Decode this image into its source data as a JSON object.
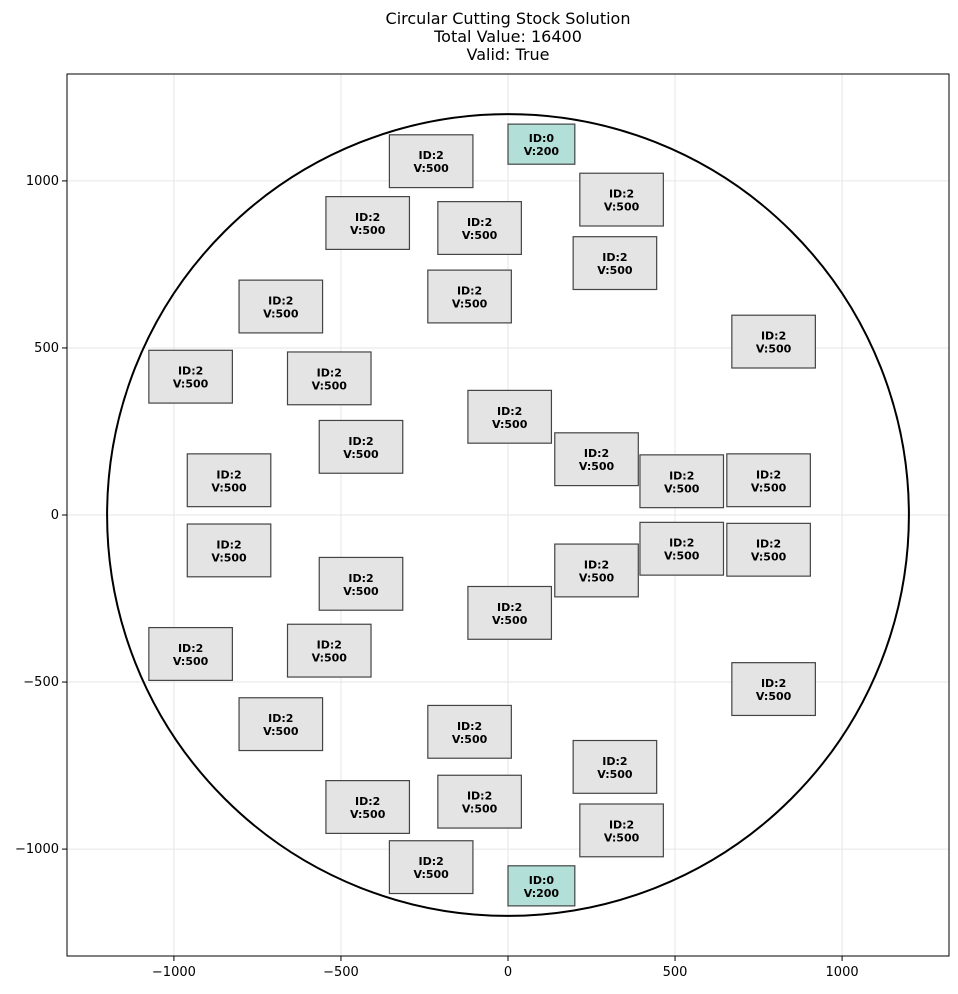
{
  "chart_data": {
    "type": "scatter",
    "title_lines": [
      "Circular Cutting Stock Solution",
      "Total Value: 16400",
      "Valid: True"
    ],
    "xlabel": "",
    "ylabel": "",
    "xlim": [
      -1320,
      1320
    ],
    "ylim": [
      -1320,
      1320
    ],
    "x_ticks": [
      -1000,
      -500,
      0,
      500,
      1000
    ],
    "y_ticks": [
      -1000,
      -500,
      0,
      500,
      1000
    ],
    "x_tick_labels": [
      "−1000",
      "−500",
      "0",
      "500",
      "1000"
    ],
    "y_tick_labels": [
      "−1000",
      "−500",
      "0",
      "500",
      "1000"
    ],
    "grid": true,
    "circle": {
      "cx": 0,
      "cy": 0,
      "r": 1200
    },
    "colors": {
      "circle": "#000000",
      "piece_0": "#b2dfd8",
      "piece_2": "#e4e4e4",
      "piece_edge": "#444444",
      "grid": "#e6e6e6"
    },
    "pieces": [
      {
        "id": 0,
        "value": 200,
        "label_id": "ID:0",
        "label_value": "V:200",
        "x0": 0,
        "y0": 1050,
        "w": 200,
        "h": 120
      },
      {
        "id": 0,
        "value": 200,
        "label_id": "ID:0",
        "label_value": "V:200",
        "x0": 0,
        "y0": -1170,
        "w": 200,
        "h": 120
      },
      {
        "id": 2,
        "value": 500,
        "label_id": "ID:2",
        "label_value": "V:500",
        "x0": -355,
        "y0": 980,
        "w": 250,
        "h": 158
      },
      {
        "id": 2,
        "value": 500,
        "label_id": "ID:2",
        "label_value": "V:500",
        "x0": 215,
        "y0": 865,
        "w": 250,
        "h": 158
      },
      {
        "id": 2,
        "value": 500,
        "label_id": "ID:2",
        "label_value": "V:500",
        "x0": -545,
        "y0": 795,
        "w": 250,
        "h": 158
      },
      {
        "id": 2,
        "value": 500,
        "label_id": "ID:2",
        "label_value": "V:500",
        "x0": -210,
        "y0": 780,
        "w": 250,
        "h": 158
      },
      {
        "id": 2,
        "value": 500,
        "label_id": "ID:2",
        "label_value": "V:500",
        "x0": 195,
        "y0": 675,
        "w": 250,
        "h": 158
      },
      {
        "id": 2,
        "value": 500,
        "label_id": "ID:2",
        "label_value": "V:500",
        "x0": -240,
        "y0": 575,
        "w": 250,
        "h": 158
      },
      {
        "id": 2,
        "value": 500,
        "label_id": "ID:2",
        "label_value": "V:500",
        "x0": -805,
        "y0": 545,
        "w": 250,
        "h": 158
      },
      {
        "id": 2,
        "value": 500,
        "label_id": "ID:2",
        "label_value": "V:500",
        "x0": 670,
        "y0": 440,
        "w": 250,
        "h": 158
      },
      {
        "id": 2,
        "value": 500,
        "label_id": "ID:2",
        "label_value": "V:500",
        "x0": -1075,
        "y0": 335,
        "w": 250,
        "h": 158
      },
      {
        "id": 2,
        "value": 500,
        "label_id": "ID:2",
        "label_value": "V:500",
        "x0": -660,
        "y0": 330,
        "w": 250,
        "h": 158
      },
      {
        "id": 2,
        "value": 500,
        "label_id": "ID:2",
        "label_value": "V:500",
        "x0": -120,
        "y0": 215,
        "w": 250,
        "h": 158
      },
      {
        "id": 2,
        "value": 500,
        "label_id": "ID:2",
        "label_value": "V:500",
        "x0": -565,
        "y0": 125,
        "w": 250,
        "h": 158
      },
      {
        "id": 2,
        "value": 500,
        "label_id": "ID:2",
        "label_value": "V:500",
        "x0": 140,
        "y0": 88,
        "w": 250,
        "h": 158
      },
      {
        "id": 2,
        "value": 500,
        "label_id": "ID:2",
        "label_value": "V:500",
        "x0": 395,
        "y0": 22,
        "w": 250,
        "h": 158
      },
      {
        "id": 2,
        "value": 500,
        "label_id": "ID:2",
        "label_value": "V:500",
        "x0": 655,
        "y0": 25,
        "w": 250,
        "h": 158
      },
      {
        "id": 2,
        "value": 500,
        "label_id": "ID:2",
        "label_value": "V:500",
        "x0": -960,
        "y0": 25,
        "w": 250,
        "h": 158
      },
      {
        "id": 2,
        "value": 500,
        "label_id": "ID:2",
        "label_value": "V:500",
        "x0": -960,
        "y0": -185,
        "w": 250,
        "h": 158
      },
      {
        "id": 2,
        "value": 500,
        "label_id": "ID:2",
        "label_value": "V:500",
        "x0": 395,
        "y0": -180,
        "w": 250,
        "h": 158
      },
      {
        "id": 2,
        "value": 500,
        "label_id": "ID:2",
        "label_value": "V:500",
        "x0": 655,
        "y0": -183,
        "w": 250,
        "h": 158
      },
      {
        "id": 2,
        "value": 500,
        "label_id": "ID:2",
        "label_value": "V:500",
        "x0": 140,
        "y0": -245,
        "w": 250,
        "h": 158
      },
      {
        "id": 2,
        "value": 500,
        "label_id": "ID:2",
        "label_value": "V:500",
        "x0": -565,
        "y0": -285,
        "w": 250,
        "h": 158
      },
      {
        "id": 2,
        "value": 500,
        "label_id": "ID:2",
        "label_value": "V:500",
        "x0": -120,
        "y0": -372,
        "w": 250,
        "h": 158
      },
      {
        "id": 2,
        "value": 500,
        "label_id": "ID:2",
        "label_value": "V:500",
        "x0": -660,
        "y0": -485,
        "w": 250,
        "h": 158
      },
      {
        "id": 2,
        "value": 500,
        "label_id": "ID:2",
        "label_value": "V:500",
        "x0": -1075,
        "y0": -495,
        "w": 250,
        "h": 158
      },
      {
        "id": 2,
        "value": 500,
        "label_id": "ID:2",
        "label_value": "V:500",
        "x0": 670,
        "y0": -600,
        "w": 250,
        "h": 158
      },
      {
        "id": 2,
        "value": 500,
        "label_id": "ID:2",
        "label_value": "V:500",
        "x0": -805,
        "y0": -705,
        "w": 250,
        "h": 158
      },
      {
        "id": 2,
        "value": 500,
        "label_id": "ID:2",
        "label_value": "V:500",
        "x0": -240,
        "y0": -728,
        "w": 250,
        "h": 158
      },
      {
        "id": 2,
        "value": 500,
        "label_id": "ID:2",
        "label_value": "V:500",
        "x0": 195,
        "y0": -833,
        "w": 250,
        "h": 158
      },
      {
        "id": 2,
        "value": 500,
        "label_id": "ID:2",
        "label_value": "V:500",
        "x0": -210,
        "y0": -937,
        "w": 250,
        "h": 158
      },
      {
        "id": 2,
        "value": 500,
        "label_id": "ID:2",
        "label_value": "V:500",
        "x0": -545,
        "y0": -953,
        "w": 250,
        "h": 158
      },
      {
        "id": 2,
        "value": 500,
        "label_id": "ID:2",
        "label_value": "V:500",
        "x0": 215,
        "y0": -1023,
        "w": 250,
        "h": 158
      },
      {
        "id": 2,
        "value": 500,
        "label_id": "ID:2",
        "label_value": "V:500",
        "x0": -355,
        "y0": -1133,
        "w": 250,
        "h": 158
      }
    ]
  }
}
